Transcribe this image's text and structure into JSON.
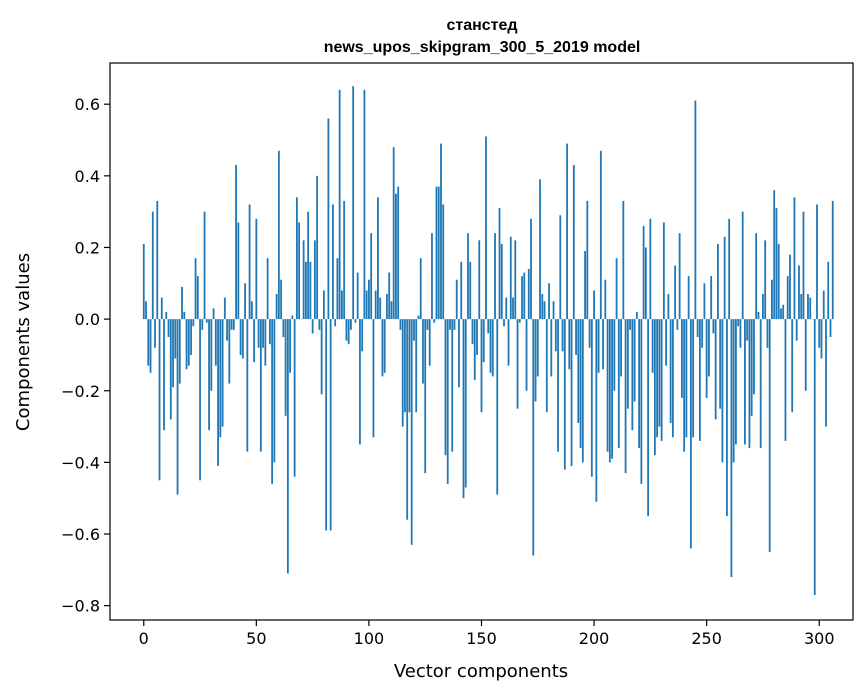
{
  "chart_data": {
    "type": "bar",
    "title_lines": [
      "станстед",
      "news_upos_skipgram_300_5_2019 model"
    ],
    "xlabel": "Vector components",
    "ylabel": "Components values",
    "xlim": [
      -15,
      315
    ],
    "ylim": [
      -0.84,
      0.715
    ],
    "xticks": [
      0,
      50,
      100,
      150,
      200,
      250,
      300
    ],
    "yticks": [
      -0.8,
      -0.6,
      -0.4,
      -0.2,
      0.0,
      0.2,
      0.4,
      0.6
    ],
    "ytick_labels": [
      "−0.8",
      "−0.6",
      "−0.4",
      "−0.2",
      "0.0",
      "0.2",
      "0.4",
      "0.6"
    ],
    "grid": false,
    "bar_color": "#1f77b4",
    "values": [
      0.21,
      0.05,
      -0.13,
      -0.15,
      0.3,
      -0.08,
      0.33,
      -0.45,
      0.06,
      -0.31,
      0.02,
      -0.05,
      -0.28,
      -0.19,
      -0.11,
      -0.49,
      -0.18,
      0.09,
      0.02,
      -0.14,
      -0.13,
      -0.1,
      -0.02,
      0.17,
      0.12,
      -0.45,
      -0.03,
      0.3,
      -0.01,
      -0.31,
      -0.2,
      0.03,
      -0.13,
      -0.41,
      -0.33,
      -0.3,
      0.06,
      -0.06,
      -0.18,
      -0.03,
      -0.03,
      0.43,
      0.27,
      -0.1,
      -0.11,
      0.1,
      -0.37,
      0.32,
      0.05,
      -0.12,
      0.28,
      -0.08,
      -0.37,
      -0.08,
      -0.13,
      0.17,
      -0.07,
      -0.46,
      -0.4,
      0.07,
      0.47,
      0.11,
      -0.05,
      -0.27,
      -0.71,
      -0.15,
      0.01,
      -0.44,
      0.34,
      0.27,
      0.0,
      0.22,
      0.16,
      0.3,
      0.16,
      -0.04,
      0.22,
      0.4,
      -0.03,
      -0.21,
      0.08,
      -0.59,
      0.56,
      -0.59,
      0.32,
      -0.02,
      0.17,
      0.64,
      0.08,
      0.33,
      -0.06,
      -0.07,
      -0.03,
      0.65,
      -0.01,
      0.13,
      -0.35,
      -0.09,
      0.64,
      0.08,
      0.11,
      0.24,
      -0.33,
      0.08,
      0.34,
      0.06,
      -0.16,
      -0.15,
      0.07,
      0.13,
      0.05,
      0.48,
      0.35,
      0.37,
      -0.03,
      -0.3,
      -0.26,
      -0.56,
      -0.26,
      -0.63,
      -0.06,
      -0.26,
      0.01,
      0.17,
      -0.18,
      -0.43,
      -0.03,
      -0.13,
      0.24,
      -0.01,
      0.37,
      0.37,
      0.49,
      0.32,
      -0.38,
      -0.46,
      -0.03,
      -0.37,
      -0.03,
      0.11,
      -0.19,
      0.16,
      -0.5,
      -0.47,
      0.24,
      0.16,
      -0.07,
      -0.17,
      -0.1,
      0.22,
      -0.26,
      -0.12,
      0.51,
      -0.04,
      -0.15,
      -0.16,
      0.24,
      -0.49,
      0.31,
      0.21,
      -0.02,
      0.06,
      -0.13,
      0.23,
      0.06,
      0.22,
      -0.25,
      -0.01,
      0.12,
      0.13,
      -0.2,
      0.14,
      0.28,
      -0.66,
      -0.23,
      -0.16,
      0.39,
      0.07,
      0.05,
      -0.26,
      0.1,
      -0.16,
      0.05,
      -0.09,
      -0.37,
      0.29,
      -0.09,
      -0.42,
      0.49,
      -0.14,
      -0.41,
      0.43,
      -0.1,
      -0.29,
      -0.36,
      -0.4,
      0.19,
      0.33,
      -0.08,
      -0.44,
      0.08,
      -0.51,
      -0.15,
      0.47,
      -0.14,
      0.11,
      -0.37,
      -0.4,
      -0.39,
      -0.2,
      0.17,
      -0.36,
      -0.16,
      0.33,
      -0.43,
      -0.25,
      -0.03,
      -0.31,
      -0.23,
      0.02,
      -0.36,
      -0.46,
      0.26,
      0.2,
      -0.55,
      0.28,
      -0.15,
      -0.38,
      -0.33,
      -0.3,
      -0.34,
      0.27,
      -0.13,
      0.07,
      -0.29,
      -0.33,
      0.15,
      -0.03,
      0.24,
      -0.22,
      -0.37,
      -0.33,
      0.12,
      -0.64,
      -0.33,
      0.61,
      -0.05,
      -0.34,
      -0.08,
      0.1,
      -0.22,
      -0.16,
      0.12,
      -0.04,
      -0.28,
      0.21,
      -0.25,
      -0.4,
      0.23,
      -0.55,
      0.28,
      -0.72,
      -0.4,
      -0.35,
      -0.02,
      -0.08,
      0.3,
      -0.35,
      -0.06,
      -0.36,
      -0.27,
      -0.21,
      0.24,
      0.02,
      -0.36,
      0.07,
      0.22,
      -0.08,
      -0.65,
      0.11,
      0.36,
      0.31,
      0.21,
      0.03,
      0.04,
      -0.34,
      0.12,
      0.18,
      -0.26,
      0.34,
      -0.06,
      0.15,
      0.07,
      0.3,
      -0.2,
      0.07,
      0.06,
      0.0,
      -0.77,
      0.32,
      -0.08,
      -0.11,
      0.08,
      -0.3,
      0.16,
      -0.05,
      0.33
    ]
  }
}
